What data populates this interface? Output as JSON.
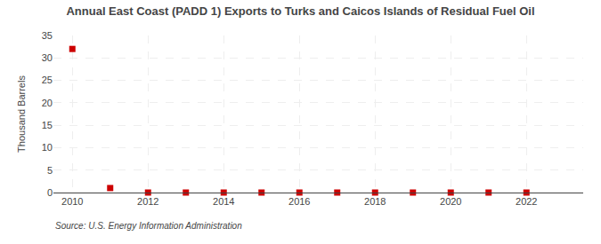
{
  "chart_data": {
    "type": "scatter",
    "title": "Annual East Coast (PADD 1) Exports to Turks and Caicos Islands of Residual Fuel Oil",
    "ylabel": "Thousand Barrels",
    "source": "Source: U.S. Energy Information Administration",
    "x": [
      2010,
      2011,
      2012,
      2013,
      2014,
      2015,
      2016,
      2017,
      2018,
      2019,
      2020,
      2021,
      2022
    ],
    "values": [
      32,
      1,
      0,
      0,
      0,
      0,
      0,
      0,
      0,
      0,
      0,
      0,
      0
    ],
    "color": "#cc0000",
    "marker": "square",
    "xlim": [
      2009.5,
      2023.5
    ],
    "xticks": [
      2010,
      2012,
      2014,
      2016,
      2018,
      2020,
      2022
    ],
    "ylim": [
      0,
      35
    ],
    "yticks": [
      0,
      5,
      10,
      15,
      20,
      25,
      30,
      35
    ],
    "grid": true
  }
}
